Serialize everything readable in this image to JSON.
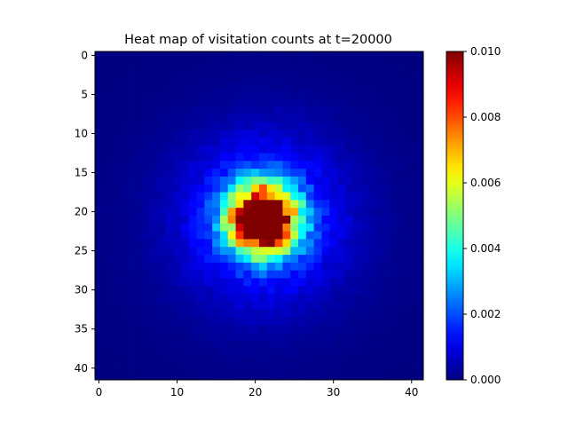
{
  "chart_data": {
    "type": "heatmap",
    "title": "Heat map of visitation counts at t=20000",
    "xlabel": "",
    "ylabel": "",
    "rows": 42,
    "cols": 42,
    "xlim": [
      -0.5,
      41.5
    ],
    "ylim": [
      41.5,
      -0.5
    ],
    "x_ticks": [
      0,
      10,
      20,
      30,
      40
    ],
    "y_ticks": [
      0,
      5,
      10,
      15,
      20,
      25,
      30,
      35,
      40
    ],
    "colormap": "jet",
    "vmin": 0.0,
    "vmax": 0.01,
    "colorbar_ticks": [
      "0.000",
      "0.002",
      "0.004",
      "0.006",
      "0.008",
      "0.010"
    ],
    "colorbar_values": [
      0.0,
      0.002,
      0.004,
      0.006,
      0.008,
      0.01
    ],
    "peak_value": 0.01,
    "peak_center": [
      21,
      21
    ],
    "hotspot_extent_rows": [
      16,
      27
    ],
    "hotspot_extent_cols": [
      14,
      26
    ],
    "background_value": 0.0,
    "grid": false
  }
}
